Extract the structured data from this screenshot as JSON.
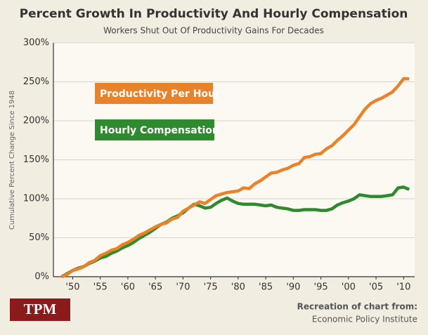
{
  "chart_data": {
    "type": "line",
    "title": "Percent Growth In Productivity And Hourly Compensation",
    "subtitle": "Workers Shut Out Of Productivity Gains For Decades",
    "y_label": "Cumulative Percent Change Since 1948",
    "source": [
      "Recreation of chart from:",
      "Economic Policy Institute"
    ],
    "logo": "TPM",
    "x": [
      1948,
      1949,
      1950,
      1951,
      1952,
      1953,
      1954,
      1955,
      1956,
      1957,
      1958,
      1959,
      1960,
      1961,
      1962,
      1963,
      1964,
      1965,
      1966,
      1967,
      1968,
      1969,
      1970,
      1971,
      1972,
      1973,
      1974,
      1975,
      1976,
      1977,
      1978,
      1979,
      1980,
      1981,
      1982,
      1983,
      1984,
      1985,
      1986,
      1987,
      1988,
      1989,
      1990,
      1991,
      1992,
      1993,
      1994,
      1995,
      1996,
      1997,
      1998,
      1999,
      2000,
      2001,
      2002,
      2003,
      2004,
      2005,
      2006,
      2007,
      2008,
      2009,
      2010,
      2011
    ],
    "series": [
      {
        "name": "Productivity Per Hour",
        "color": "#e8832b",
        "values": [
          0,
          3,
          8,
          10,
          13,
          18,
          21,
          27,
          30,
          34,
          36,
          41,
          44,
          48,
          53,
          56,
          60,
          64,
          67,
          69,
          74,
          76,
          84,
          88,
          92,
          96,
          94,
          99,
          104,
          106,
          108,
          109,
          110,
          114,
          113,
          119,
          123,
          128,
          133,
          134,
          137,
          139,
          143,
          145,
          153,
          154,
          157,
          158,
          164,
          168,
          175,
          181,
          188,
          195,
          205,
          215,
          222,
          226,
          229,
          233,
          237,
          245,
          254,
          254
        ]
      },
      {
        "name": "Hourly Compensation",
        "color": "#2f8a2f",
        "values": [
          0,
          4,
          8,
          11,
          13,
          17,
          20,
          24,
          26,
          30,
          33,
          37,
          40,
          44,
          49,
          53,
          57,
          62,
          67,
          70,
          75,
          78,
          82,
          88,
          93,
          91,
          88,
          89,
          94,
          98,
          101,
          97,
          94,
          93,
          93,
          93,
          92,
          91,
          92,
          89,
          88,
          87,
          85,
          85,
          86,
          86,
          86,
          85,
          85,
          87,
          92,
          95,
          97,
          100,
          105,
          104,
          103,
          103,
          103,
          104,
          105,
          114,
          115,
          112
        ]
      }
    ],
    "xlim": [
      1946.5,
      2012
    ],
    "xticks": [
      {
        "value": 1950,
        "label": "'50"
      },
      {
        "value": 1955,
        "label": "'55"
      },
      {
        "value": 1960,
        "label": "'60"
      },
      {
        "value": 1965,
        "label": "'65"
      },
      {
        "value": 1970,
        "label": "'70"
      },
      {
        "value": 1975,
        "label": "'75"
      },
      {
        "value": 1980,
        "label": "'80"
      },
      {
        "value": 1985,
        "label": "'85"
      },
      {
        "value": 1990,
        "label": "'90"
      },
      {
        "value": 1995,
        "label": "'95"
      },
      {
        "value": 2000,
        "label": "'00"
      },
      {
        "value": 2005,
        "label": "'05"
      },
      {
        "value": 2010,
        "label": "'10"
      }
    ],
    "ylim": [
      0,
      300
    ],
    "yticks": [
      {
        "value": 0,
        "label": "0%"
      },
      {
        "value": 50,
        "label": "50%"
      },
      {
        "value": 100,
        "label": "100%"
      },
      {
        "value": 150,
        "label": "150%"
      },
      {
        "value": 200,
        "label": "200%"
      },
      {
        "value": 250,
        "label": "250%"
      },
      {
        "value": 300,
        "label": "300%"
      }
    ],
    "grid": true
  }
}
